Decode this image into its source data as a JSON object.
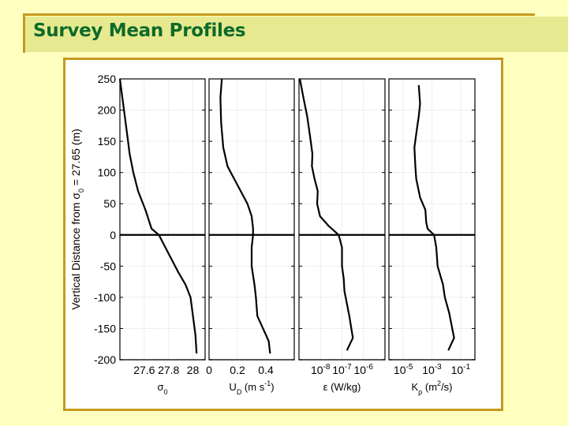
{
  "slide": {
    "title": "Survey Mean Profiles",
    "colors": {
      "background": "#ffffc0",
      "title_band": "#e6e98f",
      "accent_line": "#c49a1e",
      "title_text": "#0d6a2a",
      "figure_bg": "#ffffff"
    }
  },
  "chart_data": [
    {
      "type": "line",
      "panel": 1,
      "title": "",
      "xlabel": "σ0",
      "ylabel": "Vertical Distance from σ0 = 27.65 (m)",
      "xlim": [
        27.4,
        28.1
      ],
      "ylim": [
        -200,
        250
      ],
      "xticks": [
        27.6,
        27.8,
        28
      ],
      "xtick_labels": [
        "27.6",
        "27.8",
        "28"
      ],
      "yticks": [
        250,
        200,
        150,
        100,
        50,
        0,
        -50,
        -100,
        -150,
        -200
      ],
      "ytick_labels": [
        "250",
        "200",
        "150",
        "100",
        "50",
        "0",
        "-50",
        "-100",
        "-150",
        "-200"
      ],
      "grid": true,
      "x": [
        27.4,
        27.42,
        27.44,
        27.46,
        27.48,
        27.51,
        27.55,
        27.61,
        27.66,
        27.72,
        27.8,
        27.88,
        27.94,
        27.98,
        28.0,
        28.02,
        28.03
      ],
      "y": [
        250,
        220,
        190,
        160,
        130,
        100,
        70,
        40,
        10,
        0,
        -30,
        -60,
        -80,
        -100,
        -130,
        -160,
        -190
      ]
    },
    {
      "type": "line",
      "panel": 2,
      "xlabel": "UD (m s-1)",
      "xlim": [
        0,
        0.6
      ],
      "ylim": [
        -200,
        250
      ],
      "xticks": [
        0,
        0.2,
        0.4
      ],
      "xtick_labels": [
        "0",
        "0.2",
        "0.4"
      ],
      "grid": true,
      "x": [
        0.09,
        0.08,
        0.085,
        0.1,
        0.13,
        0.2,
        0.27,
        0.3,
        0.31,
        0.31,
        0.3,
        0.3,
        0.32,
        0.33,
        0.34,
        0.38,
        0.42,
        0.43
      ],
      "y": [
        250,
        220,
        180,
        140,
        110,
        80,
        50,
        30,
        10,
        0,
        -20,
        -50,
        -80,
        -100,
        -130,
        -150,
        -170,
        -190
      ]
    },
    {
      "type": "line",
      "panel": 3,
      "xlabel": "ε (W/kg)",
      "xscale": "log",
      "xlim": [
        1e-09,
        1e-05
      ],
      "ylim": [
        -200,
        250
      ],
      "xticks": [
        1e-08,
        1e-07,
        1e-06
      ],
      "xtick_labels": [
        "10^-8",
        "10^-7",
        "10^-6"
      ],
      "grid": true,
      "x": [
        1.1e-09,
        1.6e-09,
        2.4e-09,
        3.2e-09,
        4.2e-09,
        4e-09,
        5.3e-09,
        7.5e-09,
        7e-09,
        9.5e-09,
        2.3e-08,
        7e-08,
        1e-07,
        1e-07,
        1.2e-07,
        1.3e-07,
        2.2e-07,
        3.2e-07,
        1.7e-07
      ],
      "y": [
        250,
        220,
        190,
        160,
        130,
        110,
        90,
        70,
        50,
        30,
        15,
        0,
        -20,
        -50,
        -70,
        -90,
        -130,
        -165,
        -185
      ]
    },
    {
      "type": "line",
      "panel": 4,
      "xlabel": "Kρ (m2/s)",
      "xscale": "log",
      "xlim": [
        1e-06,
        1
      ],
      "ylim": [
        -200,
        250
      ],
      "xticks": [
        1e-05,
        0.001,
        0.1
      ],
      "xtick_labels": [
        "10^-5",
        "10^-3",
        "10^-1"
      ],
      "grid": true,
      "x": [
        0.00012,
        0.00015,
        0.00012,
        9e-05,
        6e-05,
        7e-05,
        8e-05,
        0.00015,
        0.00035,
        0.0004,
        0.0005,
        0.0014,
        0.002,
        0.0025,
        0.006,
        0.008,
        0.016,
        0.035,
        0.014
      ],
      "y": [
        240,
        210,
        190,
        170,
        140,
        110,
        90,
        60,
        40,
        20,
        10,
        0,
        -20,
        -50,
        -80,
        -100,
        -125,
        -165,
        -185
      ]
    }
  ],
  "figure": {
    "ylabel_text": "Vertical Distance from",
    "ylabel_sigma": "σ",
    "ylabel_sub": "0",
    "ylabel_tail": "= 27.65 (m)",
    "panels_xlabels": [
      {
        "main": "σ",
        "sub": "0",
        "tail": ""
      },
      {
        "main": "U",
        "sub": "D",
        "tail": " (m s",
        "sup": "-1",
        "end": ")"
      },
      {
        "main": "ε",
        "sub": "",
        "tail": " (W/kg)"
      },
      {
        "main": "K",
        "sub": "ρ",
        "tail": " (m",
        "sup": "2",
        "end": "/s)"
      }
    ]
  }
}
